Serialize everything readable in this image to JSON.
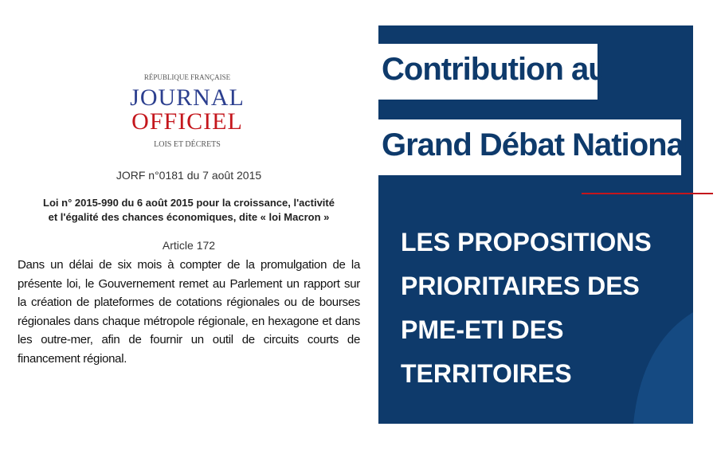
{
  "logo": {
    "republique": "RÉPUBLIQUE FRANÇAISE",
    "journal": "JOURNAL",
    "officiel": "OFFICIEL",
    "lois": "LOIS ET DÉCRETS"
  },
  "jorf": "JORF n°0181 du 7 août 2015",
  "law_title": [
    "Loi n° 2015-990 du 6 août 2015 pour la croissance, l'activité",
    "et l'égalité des chances économiques, dite « loi Macron »"
  ],
  "article": "Article 172",
  "paragraph": "Dans un délai de six mois à compter de la promulgation de la présente loi, le Gouvernement remet au Parlement un rapport sur la création de plateformes de cotations régionales ou de bourses régionales dans chaque métropole régionale, en hexagone et dans les outre-mer, afin de fournir un outil de circuits courts de financement régional.",
  "poster": {
    "title_lines": [
      "Contribution au",
      "Grand Débat National"
    ],
    "subtitle_lines": [
      "LES PROPOSITIONS",
      "PRIORITAIRES DES",
      "PME-ETI DES",
      "TERRITOIRES"
    ]
  }
}
